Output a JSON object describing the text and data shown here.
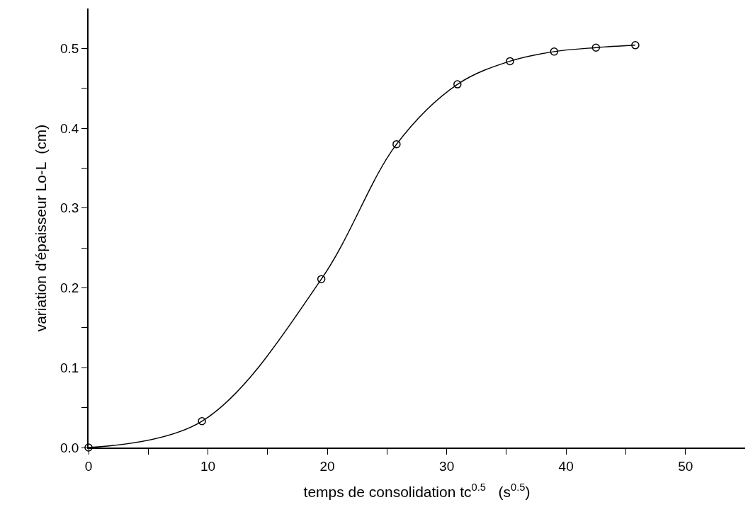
{
  "chart_data": {
    "type": "line",
    "xlabel": "temps de consolidation tc$^{0.5}$   (s$^{0.5}$)",
    "ylabel": "variation d'épaisseur Lo-L  (cm)",
    "x": [
      0,
      9.5,
      19.5,
      25.8,
      30.9,
      35.3,
      39.0,
      42.5,
      45.8
    ],
    "series": [
      {
        "color": "#000000",
        "values": [
          0,
          0.033,
          0.211,
          0.38,
          0.455,
          0.484,
          0.496,
          0.501,
          0.504
        ]
      }
    ],
    "marker": "circle",
    "grid": false,
    "xlim": [
      0,
      55
    ],
    "xticks": [
      0,
      {
        "value": 5,
        "label": null
      },
      10,
      {
        "value": 15,
        "label": null
      },
      20,
      {
        "value": 25,
        "label": null
      },
      30,
      {
        "value": 35,
        "label": null
      },
      40,
      {
        "value": 45,
        "label": null
      },
      50
    ],
    "ylim": [
      0,
      0.55
    ],
    "yticks": [
      {
        "value": 0,
        "label": "0.0"
      },
      {
        "value": 0.05,
        "label": null
      },
      0.1,
      {
        "value": 0.15,
        "label": null
      },
      0.2,
      {
        "value": 0.25,
        "label": null
      },
      0.3,
      {
        "value": 0.35,
        "label": null
      },
      0.4,
      {
        "value": 0.45,
        "label": null
      },
      0.5
    ]
  }
}
